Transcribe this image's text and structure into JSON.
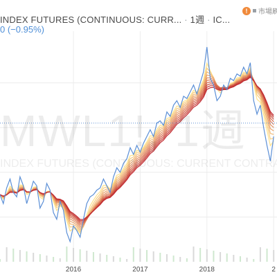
{
  "header": {
    "title": "INDEX FUTURES (CONTINUOUS: CURR...",
    "interval": "1週",
    "exchange": "IC...",
    "change": "0 (−0.95%)"
  },
  "top_right": {
    "alert_glyph": "!",
    "market_label": "市場刷"
  },
  "watermark": {
    "symbol": "MWL1!, 1週",
    "description": "INDEX FUTURES (CONTINUOUS: CURRENT CONTRACT IN"
  },
  "colors": {
    "price": "#5b8fd6",
    "ribbon_light": "#ffe28a",
    "ribbon_dark": "#c0292f",
    "grid": "#ececec",
    "price_line": "#5b8fd6"
  },
  "chart_data": {
    "type": "line",
    "title": "",
    "xlabel": "",
    "ylabel": "",
    "x_ticks": [
      "2016",
      "2017",
      "2018",
      "2"
    ],
    "x_range": [
      2014.9,
      2019.05
    ],
    "y_range": [
      0,
      100
    ],
    "grid": true,
    "last_price_level": 62,
    "series": [
      {
        "x": [
          2014.9,
          2014.95,
          2015.0,
          2015.05,
          2015.1,
          2015.15,
          2015.2,
          2015.25,
          2015.3,
          2015.35,
          2015.4,
          2015.45,
          2015.5,
          2015.55,
          2015.6,
          2015.65,
          2015.7,
          2015.75,
          2015.8,
          2015.85,
          2015.9,
          2015.95,
          2016.0,
          2016.05,
          2016.1,
          2016.15,
          2016.2,
          2016.25,
          2016.3,
          2016.35,
          2016.4,
          2016.45,
          2016.5,
          2016.55,
          2016.6,
          2016.65,
          2016.7,
          2016.75,
          2016.8,
          2016.85,
          2016.9,
          2016.95,
          2017.0,
          2017.05,
          2017.1,
          2017.15,
          2017.2,
          2017.25,
          2017.3,
          2017.35,
          2017.4,
          2017.45,
          2017.5,
          2017.55,
          2017.6,
          2017.65,
          2017.7,
          2017.75,
          2017.8,
          2017.85,
          2017.9,
          2017.95,
          2018.0,
          2018.05,
          2018.1,
          2018.15,
          2018.2,
          2018.25,
          2018.3,
          2018.35,
          2018.4,
          2018.45,
          2018.5,
          2018.55,
          2018.6,
          2018.65,
          2018.7,
          2018.75,
          2018.8,
          2018.85,
          2018.9,
          2018.95,
          2019.0
        ],
        "values": [
          30,
          26,
          33,
          37,
          31,
          29,
          38,
          34,
          26,
          31,
          36,
          34,
          24,
          27,
          35,
          32,
          22,
          19,
          27,
          23,
          13,
          9,
          16,
          14,
          11,
          19,
          26,
          29,
          30,
          32,
          33,
          37,
          34,
          31,
          38,
          42,
          40,
          44,
          46,
          51,
          48,
          52,
          49,
          53,
          56,
          59,
          56,
          62,
          63,
          61,
          67,
          65,
          70,
          72,
          69,
          74,
          73,
          76,
          79,
          75,
          80,
          85,
          96,
          82,
          79,
          72,
          74,
          79,
          77,
          82,
          81,
          84,
          83,
          87,
          84,
          89,
          72,
          66,
          70,
          60,
          52,
          45,
          56
        ]
      }
    ]
  }
}
